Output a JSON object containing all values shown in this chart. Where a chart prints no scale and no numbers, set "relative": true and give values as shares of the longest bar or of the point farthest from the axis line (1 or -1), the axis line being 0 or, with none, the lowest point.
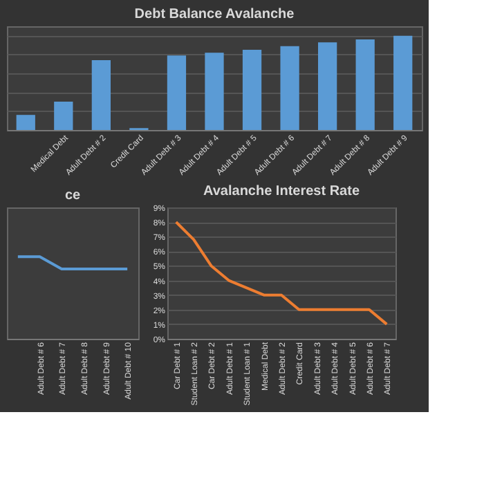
{
  "chart_data": [
    {
      "type": "bar",
      "title": "Debt Balance Avalanche",
      "relative": true,
      "grid": "y",
      "categories": [
        null,
        "Medical Debt",
        "Adult Debt # 2",
        "Credit Card",
        "Adult Debt # 3",
        "Adult Debt # 4",
        "Adult Debt # 5",
        "Adult Debt # 6",
        "Adult Debt # 7",
        "Adult Debt # 8",
        "Adult Debt # 9"
      ],
      "series": [
        {
          "color": "#5b9bd5",
          "values": [
            0.16,
            0.3,
            0.74,
            0.02,
            0.79,
            0.82,
            0.85,
            0.89,
            0.93,
            0.96,
            1.0
          ]
        }
      ]
    },
    {
      "type": "line",
      "title": "ce",
      "relative": true,
      "marker": "none",
      "line_style": "solid",
      "categories": [
        null,
        "Adult Debt # 6",
        "Adult Debt # 7",
        "Adult Debt # 8",
        "Adult Debt # 9",
        "Adult Debt # 10"
      ],
      "series": [
        {
          "color": "#5b9bd5",
          "values": [
            1,
            1,
            0.85,
            0.85,
            0.85,
            0.85
          ]
        }
      ]
    },
    {
      "type": "line",
      "title": "Avalanche Interest Rate",
      "grid": "y",
      "marker": "none",
      "line_style": "solid",
      "categories": [
        "Car Debt # 1",
        "Student Loan # 2",
        "Car Debt # 2",
        "Adult Debt # 1",
        "Student Loan # 1",
        "Medical Debt",
        "Adult Debt # 2",
        "Credit Card",
        "Adult Debt # 3",
        "Adult Debt # 4",
        "Adult Debt # 5",
        "Adult Debt # 6",
        "Adult Debt # 7"
      ],
      "ylim": [
        0,
        9
      ],
      "yticks": [
        {
          "value": 0,
          "label": "0%"
        },
        {
          "value": 1,
          "label": "1%"
        },
        {
          "value": 2,
          "label": "2%"
        },
        {
          "value": 3,
          "label": "3%"
        },
        {
          "value": 4,
          "label": "4%"
        },
        {
          "value": 5,
          "label": "5%"
        },
        {
          "value": 6,
          "label": "6%"
        },
        {
          "value": 7,
          "label": "7%"
        },
        {
          "value": 8,
          "label": "8%"
        },
        {
          "value": 9,
          "label": "9%"
        }
      ],
      "series": [
        {
          "color": "#ed7d31",
          "values": [
            8,
            6.8,
            5,
            4,
            3.5,
            3,
            3,
            2,
            2,
            2,
            2,
            2,
            1
          ]
        }
      ]
    }
  ]
}
